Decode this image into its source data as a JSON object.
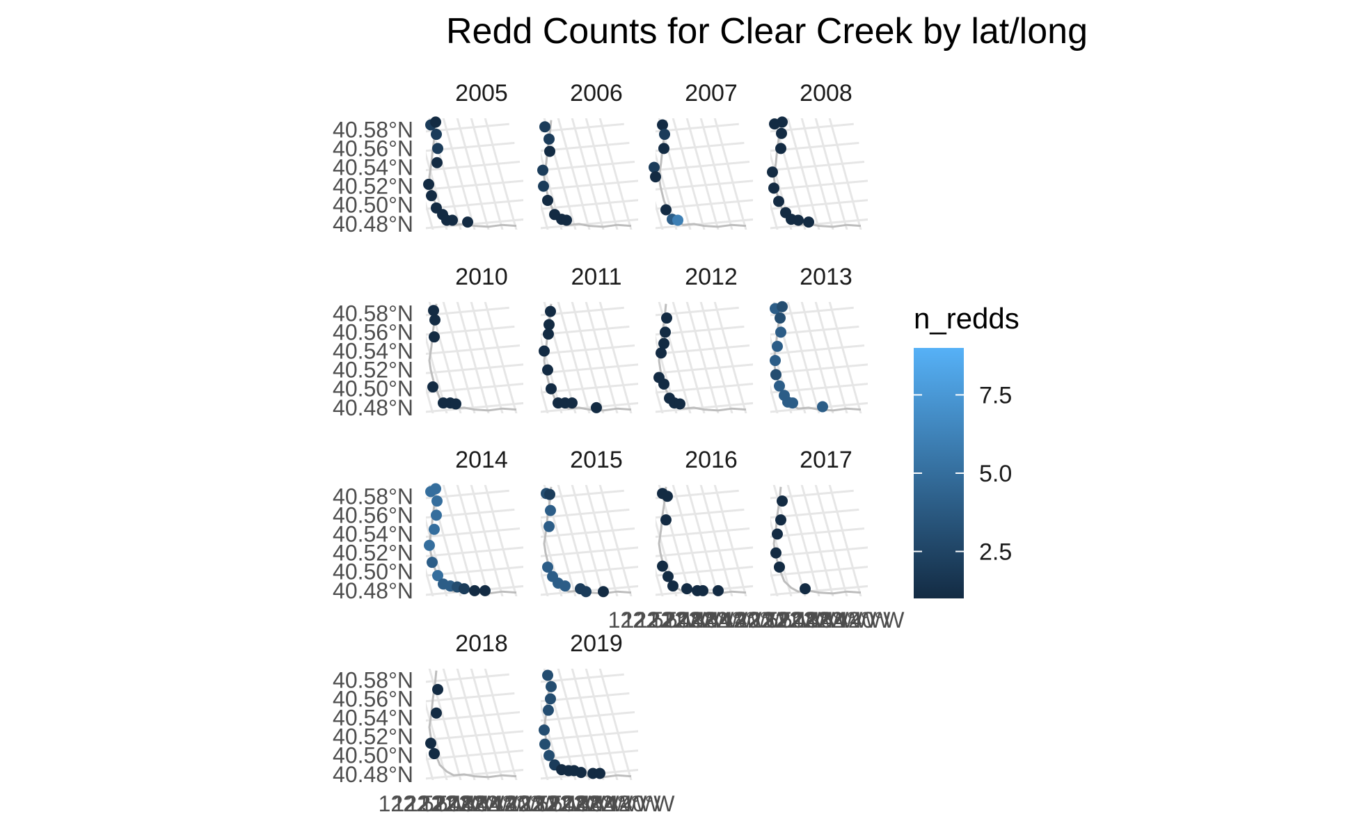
{
  "chart_data": {
    "type": "scatter",
    "title": "Redd Counts for Clear Creek by lat/long",
    "xlabel": "",
    "ylabel": "",
    "y_tick_labels": [
      "40.58°N",
      "40.56°N",
      "40.54°N",
      "40.52°N",
      "40.50°N",
      "40.48°N"
    ],
    "y_ticks": [
      40.58,
      40.56,
      40.54,
      40.52,
      40.5,
      40.48
    ],
    "x_tick_labels": [
      "122.52°W",
      "122.50°W",
      "122.48°W",
      "122.46°W",
      "122.44°W",
      "122.42°W",
      "122.40°W"
    ],
    "x_ticks": [
      -122.52,
      -122.5,
      -122.48,
      -122.46,
      -122.44,
      -122.42,
      -122.4
    ],
    "xlim": [
      -122.53,
      -122.39
    ],
    "ylim": [
      40.474,
      40.592
    ],
    "river_path": [
      [
        -122.515,
        40.59
      ],
      [
        -122.517,
        40.575
      ],
      [
        -122.52,
        40.56
      ],
      [
        -122.522,
        40.545
      ],
      [
        -122.525,
        40.53
      ],
      [
        -122.523,
        40.52
      ],
      [
        -122.518,
        40.505
      ],
      [
        -122.51,
        40.49
      ],
      [
        -122.5,
        40.483
      ],
      [
        -122.49,
        40.479
      ],
      [
        -122.475,
        40.48
      ],
      [
        -122.46,
        40.478
      ],
      [
        -122.44,
        40.477
      ],
      [
        -122.42,
        40.479
      ],
      [
        -122.4,
        40.478
      ]
    ],
    "legend": {
      "title": "n_redds",
      "breaks": [
        2.5,
        5.0,
        7.5
      ],
      "labels": [
        "2.5",
        "5.0",
        "7.5"
      ],
      "min": 1,
      "max": 9,
      "low_color": "#132B43",
      "high_color": "#56B1F7"
    },
    "facets": [
      {
        "year": "2005",
        "points": [
          [
            -122.523,
            40.585,
            2
          ],
          [
            -122.516,
            40.588,
            1
          ],
          [
            -122.515,
            40.575,
            2
          ],
          [
            -122.513,
            40.56,
            2
          ],
          [
            -122.514,
            40.545,
            1
          ],
          [
            -122.526,
            40.522,
            1
          ],
          [
            -122.522,
            40.51,
            1
          ],
          [
            -122.515,
            40.497,
            1
          ],
          [
            -122.506,
            40.49,
            1
          ],
          [
            -122.5,
            40.484,
            1
          ],
          [
            -122.492,
            40.484,
            1
          ],
          [
            -122.47,
            40.482,
            1
          ]
        ]
      },
      {
        "year": "2006",
        "points": [
          [
            -122.524,
            40.583,
            2
          ],
          [
            -122.518,
            40.57,
            2
          ],
          [
            -122.517,
            40.557,
            1
          ],
          [
            -122.527,
            40.537,
            2
          ],
          [
            -122.526,
            40.52,
            2
          ],
          [
            -122.52,
            40.505,
            1
          ],
          [
            -122.51,
            40.49,
            1
          ],
          [
            -122.5,
            40.485,
            1
          ],
          [
            -122.493,
            40.484,
            1
          ]
        ]
      },
      {
        "year": "2007",
        "points": [
          [
            -122.52,
            40.585,
            1
          ],
          [
            -122.517,
            40.575,
            2
          ],
          [
            -122.518,
            40.56,
            1
          ],
          [
            -122.532,
            40.54,
            2
          ],
          [
            -122.53,
            40.53,
            1
          ],
          [
            -122.515,
            40.495,
            1
          ],
          [
            -122.506,
            40.485,
            4
          ],
          [
            -122.498,
            40.484,
            6
          ]
        ]
      },
      {
        "year": "2008",
        "points": [
          [
            -122.524,
            40.586,
            1
          ],
          [
            -122.513,
            40.588,
            1
          ],
          [
            -122.514,
            40.576,
            1
          ],
          [
            -122.515,
            40.56,
            1
          ],
          [
            -122.527,
            40.535,
            1
          ],
          [
            -122.525,
            40.518,
            1
          ],
          [
            -122.518,
            40.504,
            1
          ],
          [
            -122.508,
            40.492,
            1
          ],
          [
            -122.5,
            40.485,
            1
          ],
          [
            -122.49,
            40.484,
            1
          ],
          [
            -122.475,
            40.482,
            1
          ]
        ]
      },
      {
        "year": "2010",
        "points": [
          [
            -122.519,
            40.583,
            1
          ],
          [
            -122.517,
            40.573,
            1
          ],
          [
            -122.518,
            40.555,
            1
          ],
          [
            -122.52,
            40.502,
            1
          ],
          [
            -122.505,
            40.485,
            1
          ],
          [
            -122.495,
            40.485,
            1
          ],
          [
            -122.487,
            40.484,
            1
          ]
        ]
      },
      {
        "year": "2011",
        "points": [
          [
            -122.516,
            40.582,
            1
          ],
          [
            -122.518,
            40.568,
            1
          ],
          [
            -122.519,
            40.558,
            1
          ],
          [
            -122.525,
            40.54,
            1
          ],
          [
            -122.52,
            40.52,
            1
          ],
          [
            -122.515,
            40.5,
            1
          ],
          [
            -122.505,
            40.485,
            1
          ],
          [
            -122.495,
            40.485,
            1
          ],
          [
            -122.485,
            40.485,
            1
          ],
          [
            -122.45,
            40.48,
            1
          ]
        ]
      },
      {
        "year": "2012",
        "points": [
          [
            -122.514,
            40.575,
            1
          ],
          [
            -122.516,
            40.56,
            1
          ],
          [
            -122.518,
            40.548,
            1
          ],
          [
            -122.522,
            40.538,
            1
          ],
          [
            -122.525,
            40.512,
            1
          ],
          [
            -122.518,
            40.505,
            1
          ],
          [
            -122.51,
            40.49,
            1
          ],
          [
            -122.503,
            40.485,
            1
          ],
          [
            -122.495,
            40.484,
            1
          ]
        ]
      },
      {
        "year": "2013",
        "points": [
          [
            -122.523,
            40.585,
            4
          ],
          [
            -122.513,
            40.587,
            3
          ],
          [
            -122.516,
            40.575,
            3
          ],
          [
            -122.515,
            40.56,
            4
          ],
          [
            -122.52,
            40.545,
            4
          ],
          [
            -122.523,
            40.53,
            4
          ],
          [
            -122.522,
            40.515,
            3
          ],
          [
            -122.517,
            40.503,
            4
          ],
          [
            -122.51,
            40.493,
            4
          ],
          [
            -122.505,
            40.486,
            4
          ],
          [
            -122.498,
            40.485,
            4
          ],
          [
            -122.455,
            40.481,
            4
          ]
        ]
      },
      {
        "year": "2014",
        "points": [
          [
            -122.523,
            40.585,
            5
          ],
          [
            -122.516,
            40.588,
            5
          ],
          [
            -122.514,
            40.575,
            5
          ],
          [
            -122.515,
            40.56,
            5
          ],
          [
            -122.518,
            40.545,
            5
          ],
          [
            -122.525,
            40.528,
            5
          ],
          [
            -122.521,
            40.51,
            4
          ],
          [
            -122.513,
            40.496,
            5
          ],
          [
            -122.505,
            40.487,
            4
          ],
          [
            -122.495,
            40.485,
            4
          ],
          [
            -122.485,
            40.484,
            3
          ],
          [
            -122.475,
            40.482,
            2
          ],
          [
            -122.46,
            40.48,
            1
          ],
          [
            -122.445,
            40.48,
            1
          ]
        ]
      },
      {
        "year": "2015",
        "points": [
          [
            -122.522,
            40.583,
            3
          ],
          [
            -122.517,
            40.582,
            2
          ],
          [
            -122.516,
            40.565,
            4
          ],
          [
            -122.518,
            40.548,
            4
          ],
          [
            -122.52,
            40.505,
            4
          ],
          [
            -122.513,
            40.495,
            4
          ],
          [
            -122.505,
            40.488,
            4
          ],
          [
            -122.495,
            40.485,
            4
          ],
          [
            -122.473,
            40.482,
            2
          ],
          [
            -122.465,
            40.479,
            2
          ],
          [
            -122.44,
            40.479,
            1
          ]
        ]
      },
      {
        "year": "2016",
        "points": [
          [
            -122.52,
            40.583,
            1
          ],
          [
            -122.513,
            40.58,
            1
          ],
          [
            -122.515,
            40.555,
            1
          ],
          [
            -122.52,
            40.506,
            1
          ],
          [
            -122.512,
            40.495,
            1
          ],
          [
            -122.505,
            40.485,
            1
          ],
          [
            -122.485,
            40.482,
            1
          ],
          [
            -122.47,
            40.48,
            1
          ],
          [
            -122.462,
            40.48,
            1
          ],
          [
            -122.44,
            40.48,
            1
          ]
        ]
      },
      {
        "year": "2017",
        "points": [
          [
            -122.513,
            40.575,
            1
          ],
          [
            -122.515,
            40.555,
            1
          ],
          [
            -122.52,
            40.54,
            1
          ],
          [
            -122.522,
            40.52,
            1
          ],
          [
            -122.517,
            40.505,
            1
          ],
          [
            -122.48,
            40.482,
            1
          ]
        ]
      },
      {
        "year": "2018",
        "points": [
          [
            -122.513,
            40.57,
            1
          ],
          [
            -122.515,
            40.545,
            1
          ],
          [
            -122.523,
            40.513,
            1
          ],
          [
            -122.518,
            40.502,
            1
          ]
        ]
      },
      {
        "year": "2019",
        "points": [
          [
            -122.52,
            40.585,
            3
          ],
          [
            -122.515,
            40.573,
            3
          ],
          [
            -122.516,
            40.56,
            3
          ],
          [
            -122.519,
            40.548,
            3
          ],
          [
            -122.525,
            40.527,
            3
          ],
          [
            -122.524,
            40.512,
            3
          ],
          [
            -122.518,
            40.5,
            3
          ],
          [
            -122.51,
            40.49,
            2
          ],
          [
            -122.5,
            40.485,
            1
          ],
          [
            -122.49,
            40.484,
            1
          ],
          [
            -122.482,
            40.484,
            1
          ],
          [
            -122.472,
            40.482,
            1
          ],
          [
            -122.455,
            40.481,
            1
          ],
          [
            -122.445,
            40.481,
            1
          ]
        ]
      }
    ]
  }
}
